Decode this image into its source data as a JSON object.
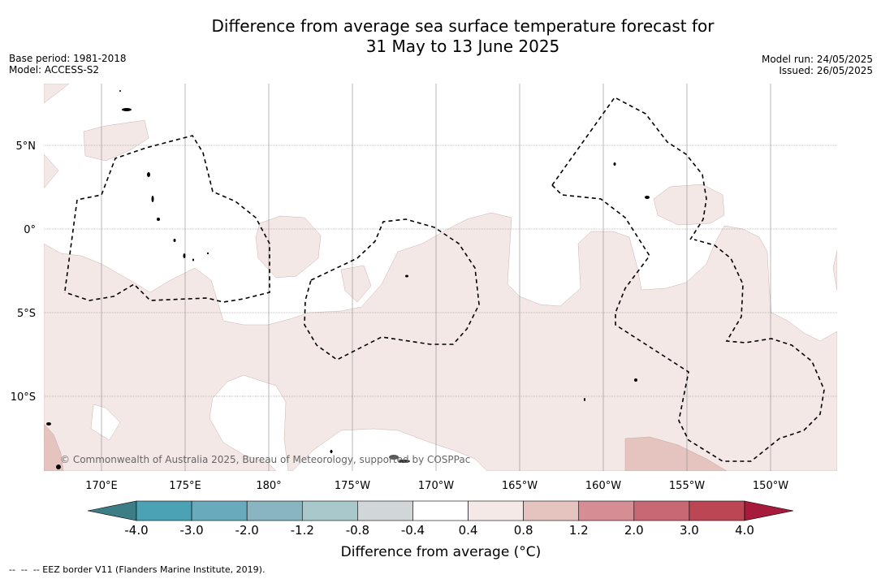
{
  "title": {
    "line1": "Difference from average sea surface temperature forecast for",
    "line2": "31 May to 13 June 2025"
  },
  "meta_left": {
    "base_period": "Base period: 1981-2018",
    "model": "Model: ACCESS-S2"
  },
  "meta_right": {
    "model_run": "Model run: 24/05/2025",
    "issued": "Issued: 26/05/2025"
  },
  "map": {
    "lat_labels": [
      "5°N",
      "0°",
      "5°S",
      "10°S"
    ],
    "lon_labels": [
      "170°E",
      "175°E",
      "180°",
      "175°W",
      "170°W",
      "165°W",
      "160°W",
      "155°W",
      "150°W"
    ],
    "copyright": "© Commonwealth of Australia 2025, Bureau of Meteorology, supported by COSPPac",
    "colors": {
      "ocean_mild_warm": "#f4e8e6",
      "ocean_warm": "#e5c4bf",
      "land": "#555555"
    }
  },
  "colorbar": {
    "title": "Difference from average (°C)",
    "tick_labels": [
      "-4.0",
      "-3.0",
      "-2.0",
      "-1.2",
      "-0.8",
      "-0.4",
      "0.4",
      "0.8",
      "1.2",
      "2.0",
      "3.0",
      "4.0"
    ],
    "colors": [
      "#3d7e86",
      "#4aa2b4",
      "#69abbc",
      "#88b5c1",
      "#a8c8cb",
      "#d1d6d8",
      "#ffffff",
      "#f5e9e8",
      "#e5c4bf",
      "#d68d93",
      "#c86875",
      "#bd4655",
      "#a61a3c"
    ]
  },
  "footnote": "--  --  -- EEZ border V11 (Flanders Marine Institute, 2019)."
}
